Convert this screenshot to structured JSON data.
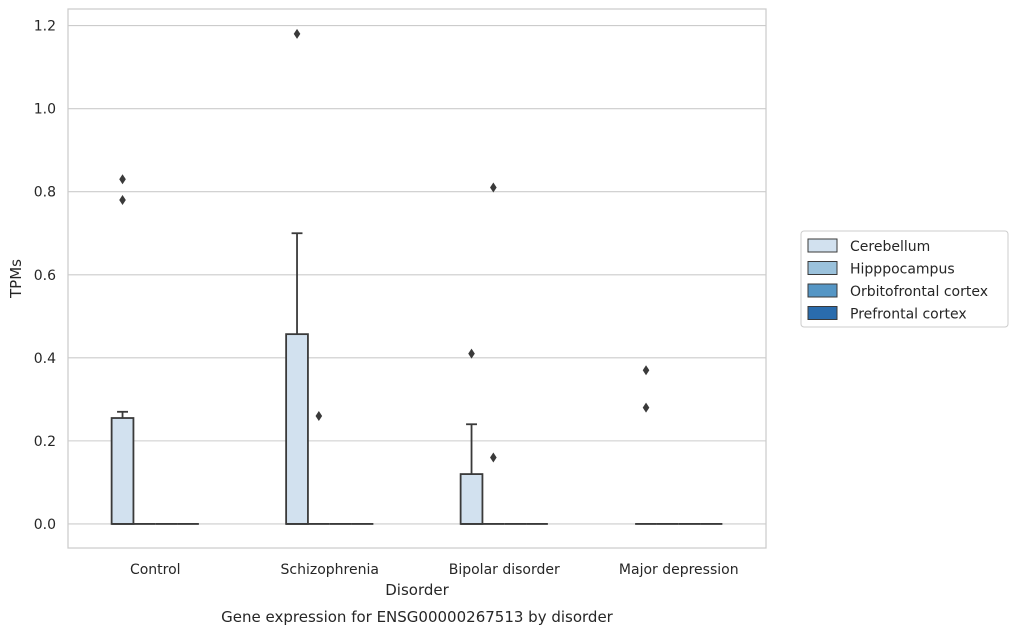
{
  "chart_data": {
    "type": "box",
    "caption": "Gene expression for ENSG00000267513 by disorder",
    "xlabel": "Disorder",
    "ylabel": "TPMs",
    "ylim": [
      -0.058,
      1.24
    ],
    "yticks": [
      0.0,
      0.2,
      0.4,
      0.6,
      0.8,
      1.0,
      1.2
    ],
    "ytick_labels": [
      "0.0",
      "0.2",
      "0.4",
      "0.6",
      "0.8",
      "1.0",
      "1.2"
    ],
    "grid": true,
    "legend_position": "right-center",
    "categories": [
      "Control",
      "Schizophrenia",
      "Bipolar disorder",
      "Major depression"
    ],
    "series": [
      {
        "name": "Cerebellum",
        "color": "#d2e1ef",
        "boxes": [
          {
            "q1": 0.0,
            "median": 0.0,
            "q3": 0.255,
            "whisker_low": 0.0,
            "whisker_high": 0.27,
            "outliers": [
              0.78,
              0.83
            ]
          },
          {
            "q1": 0.0,
            "median": 0.0,
            "q3": 0.457,
            "whisker_low": 0.0,
            "whisker_high": 0.7,
            "outliers": [
              1.18
            ]
          },
          {
            "q1": 0.0,
            "median": 0.0,
            "q3": 0.12,
            "whisker_low": 0.0,
            "whisker_high": 0.24,
            "outliers": [
              0.41
            ]
          },
          {
            "q1": 0.0,
            "median": 0.0,
            "q3": 0.0,
            "whisker_low": 0.0,
            "whisker_high": 0.0,
            "outliers": [
              0.28,
              0.37
            ]
          }
        ]
      },
      {
        "name": "Hipppocampus",
        "color": "#9bc2dc",
        "boxes": [
          {
            "q1": 0.0,
            "median": 0.0,
            "q3": 0.0,
            "whisker_low": 0.0,
            "whisker_high": 0.0,
            "outliers": []
          },
          {
            "q1": 0.0,
            "median": 0.0,
            "q3": 0.0,
            "whisker_low": 0.0,
            "whisker_high": 0.0,
            "outliers": [
              0.26
            ]
          },
          {
            "q1": 0.0,
            "median": 0.0,
            "q3": 0.0,
            "whisker_low": 0.0,
            "whisker_high": 0.0,
            "outliers": [
              0.16,
              0.81
            ]
          },
          {
            "q1": 0.0,
            "median": 0.0,
            "q3": 0.0,
            "whisker_low": 0.0,
            "whisker_high": 0.0,
            "outliers": []
          }
        ]
      },
      {
        "name": "Orbitofrontal cortex",
        "color": "#5596c5",
        "boxes": [
          {
            "q1": 0.0,
            "median": 0.0,
            "q3": 0.0,
            "whisker_low": 0.0,
            "whisker_high": 0.0,
            "outliers": []
          },
          {
            "q1": 0.0,
            "median": 0.0,
            "q3": 0.0,
            "whisker_low": 0.0,
            "whisker_high": 0.0,
            "outliers": []
          },
          {
            "q1": 0.0,
            "median": 0.0,
            "q3": 0.0,
            "whisker_low": 0.0,
            "whisker_high": 0.0,
            "outliers": []
          },
          {
            "q1": 0.0,
            "median": 0.0,
            "q3": 0.0,
            "whisker_low": 0.0,
            "whisker_high": 0.0,
            "outliers": []
          }
        ]
      },
      {
        "name": "Prefrontal cortex",
        "color": "#2a6cad",
        "boxes": [
          {
            "q1": 0.0,
            "median": 0.0,
            "q3": 0.0,
            "whisker_low": 0.0,
            "whisker_high": 0.0,
            "outliers": []
          },
          {
            "q1": 0.0,
            "median": 0.0,
            "q3": 0.0,
            "whisker_low": 0.0,
            "whisker_high": 0.0,
            "outliers": []
          },
          {
            "q1": 0.0,
            "median": 0.0,
            "q3": 0.0,
            "whisker_low": 0.0,
            "whisker_high": 0.0,
            "outliers": []
          },
          {
            "q1": 0.0,
            "median": 0.0,
            "q3": 0.0,
            "whisker_low": 0.0,
            "whisker_high": 0.0,
            "outliers": []
          }
        ]
      }
    ]
  }
}
